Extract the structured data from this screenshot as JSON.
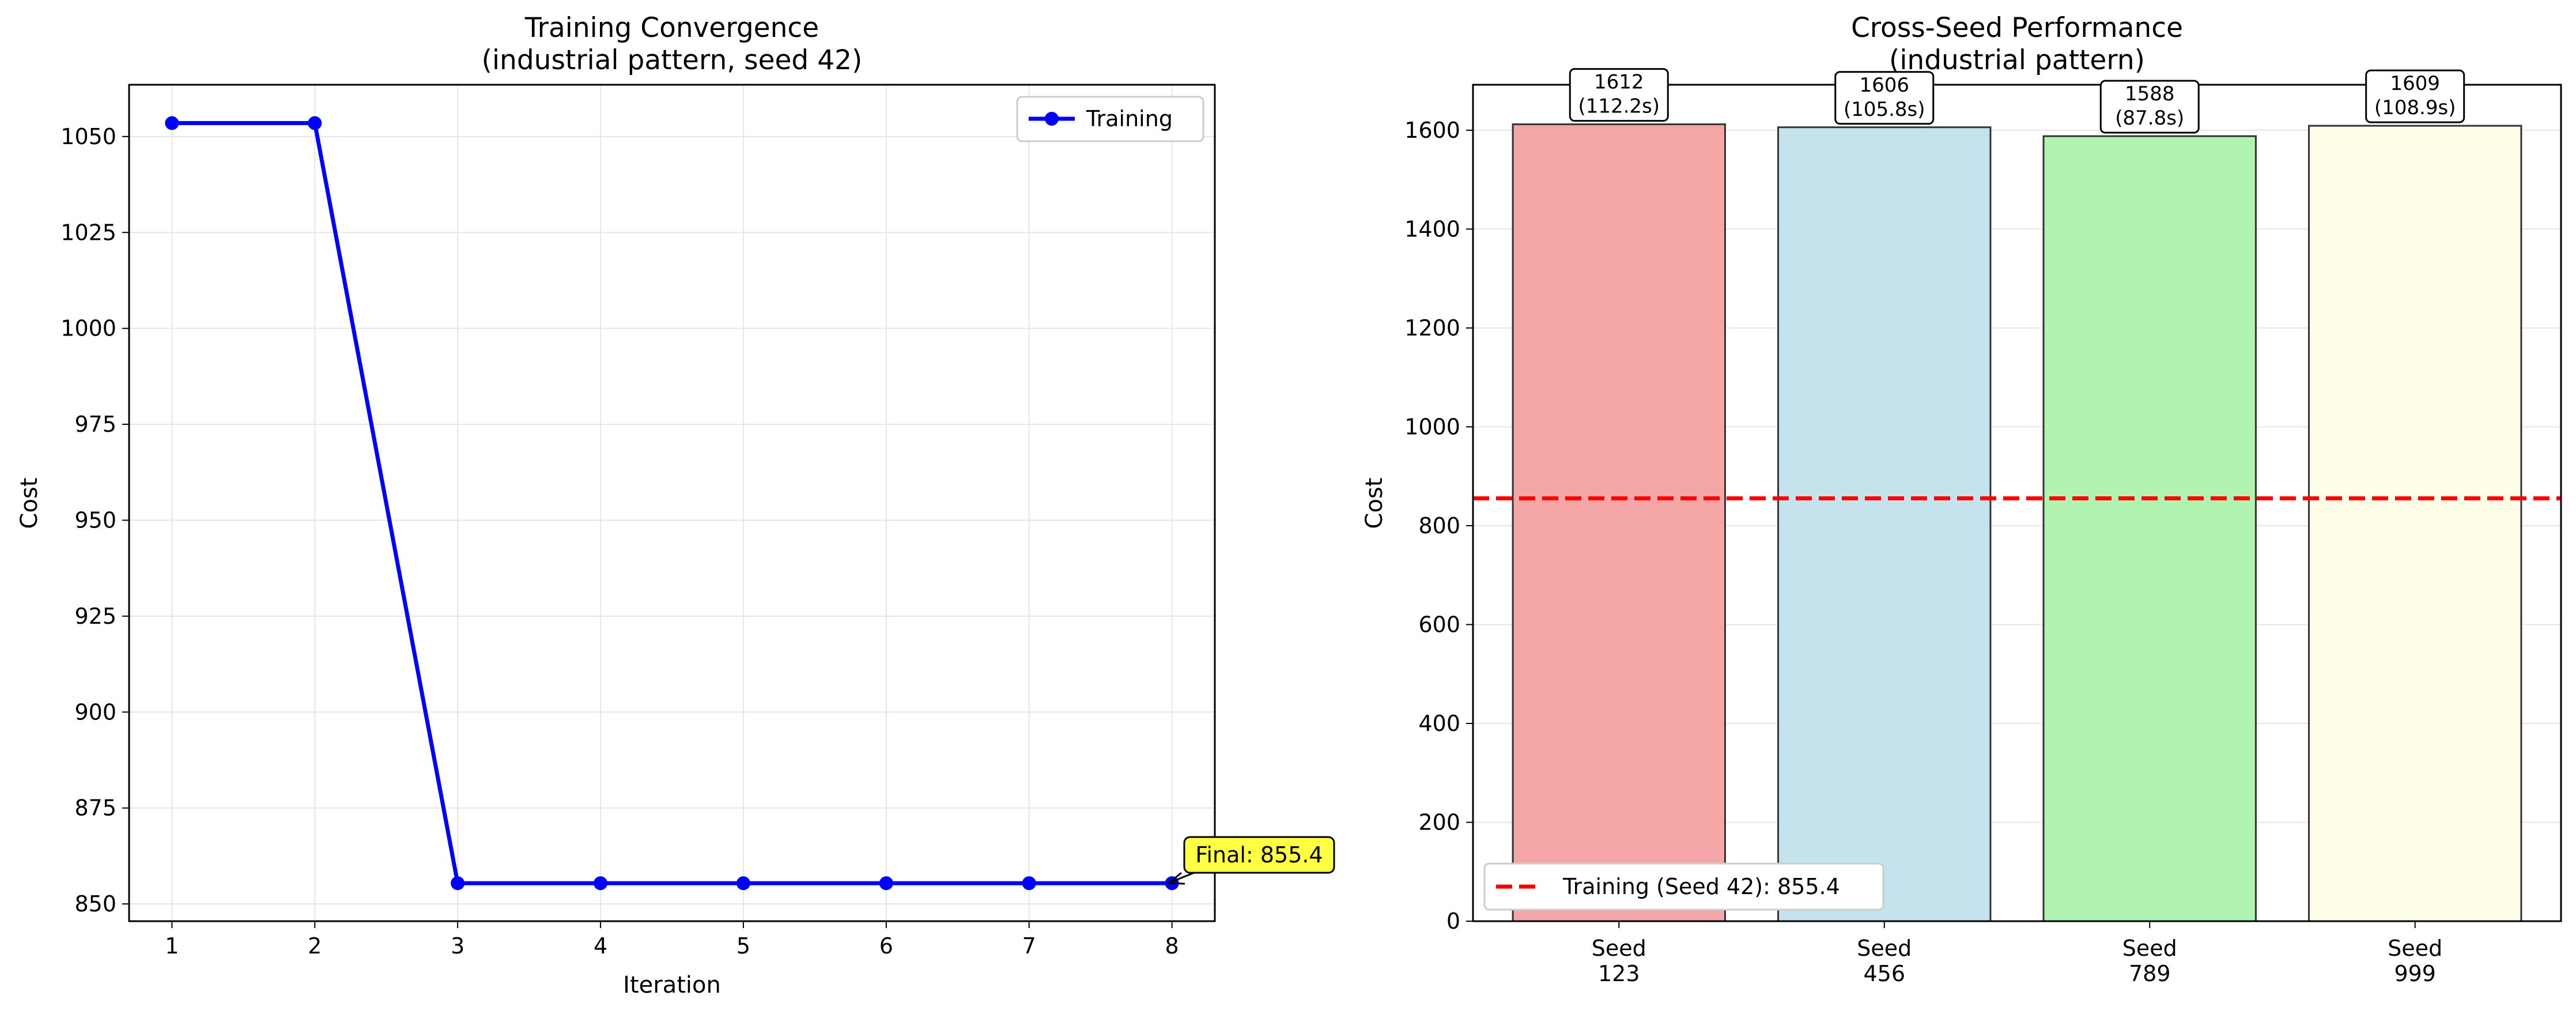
{
  "chart_data": [
    {
      "type": "line",
      "title": "Training Convergence",
      "subtitle": "(industrial pattern, seed 42)",
      "xlabel": "Iteration",
      "ylabel": "Cost",
      "x": [
        1,
        2,
        3,
        4,
        5,
        6,
        7,
        8
      ],
      "xticks": [
        "1",
        "2",
        "3",
        "4",
        "5",
        "6",
        "7",
        "8"
      ],
      "yticks": [
        "850",
        "875",
        "900",
        "925",
        "950",
        "975",
        "1000",
        "1025",
        "1050"
      ],
      "xlim": [
        0.7,
        8.3
      ],
      "ylim": [
        845.5,
        1063.5
      ],
      "series": [
        {
          "name": "Training",
          "values": [
            1053.5,
            1053.5,
            855.4,
            855.4,
            855.4,
            855.4,
            855.4,
            855.4
          ],
          "color": "#0000ff"
        }
      ],
      "annotation": {
        "text": "Final: 855.4",
        "x": 8,
        "y": 855.4,
        "box_color": "#ffff44"
      },
      "legend": "top-right",
      "grid": true
    },
    {
      "type": "bar",
      "title": "Cross-Seed Performance",
      "subtitle": "(industrial pattern)",
      "xlabel": "",
      "ylabel": "Cost",
      "categories": [
        {
          "line1": "Seed",
          "line2": "123"
        },
        {
          "line1": "Seed",
          "line2": "456"
        },
        {
          "line1": "Seed",
          "line2": "789"
        },
        {
          "line1": "Seed",
          "line2": "999"
        }
      ],
      "values": [
        1612,
        1606,
        1588,
        1609
      ],
      "value_labels": [
        "1612",
        "1606",
        "1588",
        "1609"
      ],
      "time_labels": [
        "(112.2s)",
        "(105.8s)",
        "(87.8s)",
        "(108.9s)"
      ],
      "bar_colors": [
        "#f4a6a6",
        "#c5e3ec",
        "#b1f3b0",
        "#fffee8"
      ],
      "yticks": [
        "0",
        "200",
        "400",
        "600",
        "800",
        "1000",
        "1200",
        "1400",
        "1600"
      ],
      "ylim": [
        0,
        1692
      ],
      "reference_line": {
        "label": "Training (Seed 42): 855.4",
        "value": 855.4,
        "color": "#ff0000"
      },
      "legend": "bottom-left",
      "grid": true
    }
  ]
}
